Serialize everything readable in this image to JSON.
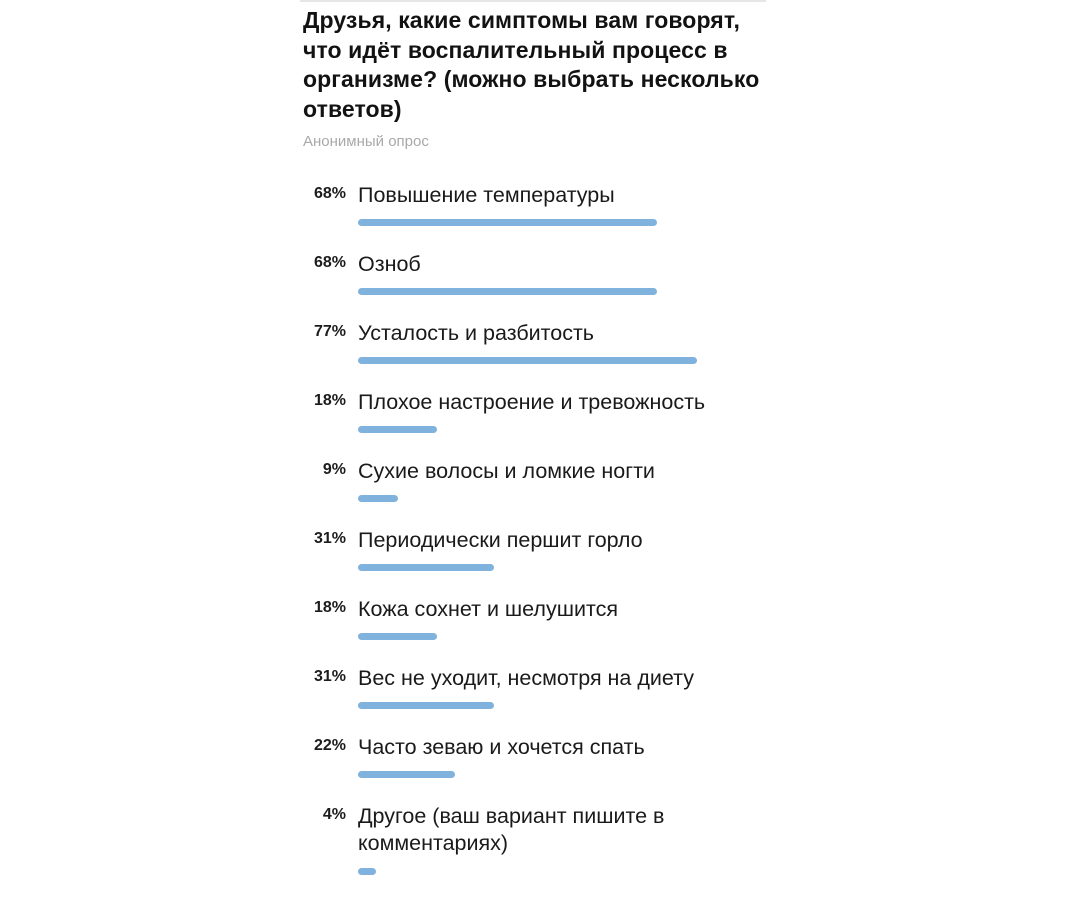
{
  "poll": {
    "question": "Друзья, какие симптомы вам говорят, что идёт воспалительный процесс в организме? (можно выбрать несколько ответов)",
    "poll_type": "Анонимный опрос",
    "bar_color": "#7fb2dc",
    "options": [
      {
        "percent_label": "68%",
        "label": "Повышение температуры",
        "percent": 68
      },
      {
        "percent_label": "68%",
        "label": "Озноб",
        "percent": 68
      },
      {
        "percent_label": "77%",
        "label": "Усталость и разбитость",
        "percent": 77
      },
      {
        "percent_label": "18%",
        "label": "Плохое настроение и тревожность",
        "percent": 18
      },
      {
        "percent_label": "9%",
        "label": "Сухие волосы и ломкие ногти",
        "percent": 9
      },
      {
        "percent_label": "31%",
        "label": "Периодически першит горло",
        "percent": 31
      },
      {
        "percent_label": "18%",
        "label": "Кожа сохнет и шелушится",
        "percent": 18
      },
      {
        "percent_label": "31%",
        "label": "Вес не уходит, несмотря на диету",
        "percent": 31
      },
      {
        "percent_label": "22%",
        "label": "Часто зеваю и хочется спать",
        "percent": 22
      },
      {
        "percent_label": "4%",
        "label": "Другое (ваш вариант пишите в комментариях)",
        "percent": 4
      }
    ]
  }
}
